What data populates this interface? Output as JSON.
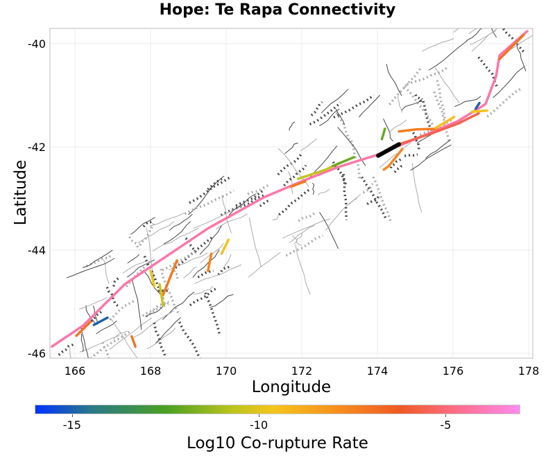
{
  "chart_data": {
    "type": "map",
    "title": "Hope: Te Rapa Connectivity",
    "xlabel": "Longitude",
    "ylabel": "Latitude",
    "xlim": [
      165.3,
      178.1
    ],
    "ylim": [
      -46.1,
      -39.7
    ],
    "xticks": [
      "166",
      "168",
      "170",
      "172",
      "174",
      "176",
      "178"
    ],
    "yticks": [
      "-40",
      "-42",
      "-44",
      "-46"
    ],
    "grid": true,
    "colorbar": {
      "title": "Log10 Co-rupture Rate",
      "range": [
        -16,
        -3
      ],
      "ticks": [
        "-15",
        "-10",
        "-5"
      ],
      "stops": [
        {
          "v": -16,
          "c": "#0033ff"
        },
        {
          "v": -14.5,
          "c": "#2a7888"
        },
        {
          "v": -12.5,
          "c": "#4aa022"
        },
        {
          "v": -10.7,
          "c": "#bcc41e"
        },
        {
          "v": -9.6,
          "c": "#f5c51c"
        },
        {
          "v": -8,
          "c": "#f7921e"
        },
        {
          "v": -6.2,
          "c": "#ee5a24"
        },
        {
          "v": -4.5,
          "c": "#ff7096"
        },
        {
          "v": -3,
          "c": "#ff8aee"
        }
      ]
    },
    "target_section": {
      "name": "Hope: Te Rapa",
      "color": "#000000",
      "path": [
        [
          174.02,
          -42.17
        ],
        [
          174.57,
          -41.95
        ]
      ]
    },
    "segments": [
      {
        "rate": -4.2,
        "path": [
          [
            165.39,
            -45.87
          ],
          [
            166.22,
            -45.46
          ],
          [
            167.32,
            -44.66
          ],
          [
            168.42,
            -44.12
          ],
          [
            169.52,
            -43.58
          ],
          [
            170.99,
            -42.98
          ],
          [
            172.09,
            -42.64
          ],
          [
            173.01,
            -42.38
          ],
          [
            173.93,
            -42.17
          ],
          [
            175.03,
            -41.84
          ],
          [
            176.13,
            -41.5
          ],
          [
            176.86,
            -41.17
          ],
          [
            177.14,
            -40.63
          ],
          [
            177.23,
            -40.23
          ],
          [
            177.96,
            -39.76
          ]
        ]
      },
      {
        "rate": -5.6,
        "path": [
          [
            174.57,
            -41.95
          ],
          [
            175.39,
            -41.75
          ],
          [
            176.13,
            -41.55
          ],
          [
            176.68,
            -41.35
          ]
        ]
      },
      {
        "rate": -7.3,
        "path": [
          [
            174.57,
            -41.7
          ],
          [
            175.03,
            -41.66
          ],
          [
            175.58,
            -41.65
          ]
        ]
      },
      {
        "rate": -10.6,
        "path": [
          [
            171.9,
            -42.62
          ],
          [
            172.64,
            -42.44
          ],
          [
            173.01,
            -42.31
          ]
        ]
      },
      {
        "rate": -12.0,
        "path": [
          [
            172.82,
            -42.37
          ],
          [
            173.38,
            -42.2
          ]
        ]
      },
      {
        "rate": -7.2,
        "path": [
          [
            171.72,
            -42.77
          ],
          [
            172.09,
            -42.67
          ]
        ]
      },
      {
        "rate": -7.6,
        "path": [
          [
            174.66,
            -42.04
          ],
          [
            174.3,
            -42.37
          ],
          [
            174.17,
            -42.44
          ]
        ]
      },
      {
        "rate": -9.4,
        "path": [
          [
            175.55,
            -41.63
          ],
          [
            176.03,
            -41.42
          ]
        ]
      },
      {
        "rate": -15.0,
        "path": [
          [
            176.7,
            -41.15
          ],
          [
            176.6,
            -41.26
          ]
        ]
      },
      {
        "rate": -9.5,
        "path": [
          [
            176.5,
            -41.32
          ],
          [
            176.9,
            -41.3
          ]
        ]
      },
      {
        "rate": -7.0,
        "path": [
          [
            177.87,
            -39.83
          ],
          [
            177.23,
            -40.3
          ]
        ]
      },
      {
        "rate": -7.0,
        "path": [
          [
            166.04,
            -45.66
          ],
          [
            166.41,
            -45.39
          ]
        ]
      },
      {
        "rate": -15.0,
        "path": [
          [
            166.5,
            -45.45
          ],
          [
            166.86,
            -45.31
          ]
        ]
      },
      {
        "rate": -7.0,
        "path": [
          [
            167.5,
            -45.67
          ],
          [
            167.6,
            -45.87
          ]
        ]
      },
      {
        "rate": -7.2,
        "path": [
          [
            168.7,
            -44.2
          ],
          [
            168.33,
            -44.87
          ]
        ]
      },
      {
        "rate": -10.4,
        "path": [
          [
            168.24,
            -44.66
          ],
          [
            168.33,
            -45.07
          ]
        ]
      },
      {
        "rate": -9.8,
        "path": [
          [
            168.0,
            -44.4
          ],
          [
            168.1,
            -44.7
          ]
        ]
      },
      {
        "rate": -9.5,
        "path": [
          [
            170.06,
            -43.8
          ],
          [
            169.88,
            -44.07
          ]
        ]
      },
      {
        "rate": -7.5,
        "path": [
          [
            169.61,
            -44.07
          ],
          [
            169.52,
            -44.4
          ]
        ]
      },
      {
        "rate": -12.0,
        "path": [
          [
            174.2,
            -41.65
          ],
          [
            174.12,
            -41.85
          ]
        ]
      }
    ]
  }
}
